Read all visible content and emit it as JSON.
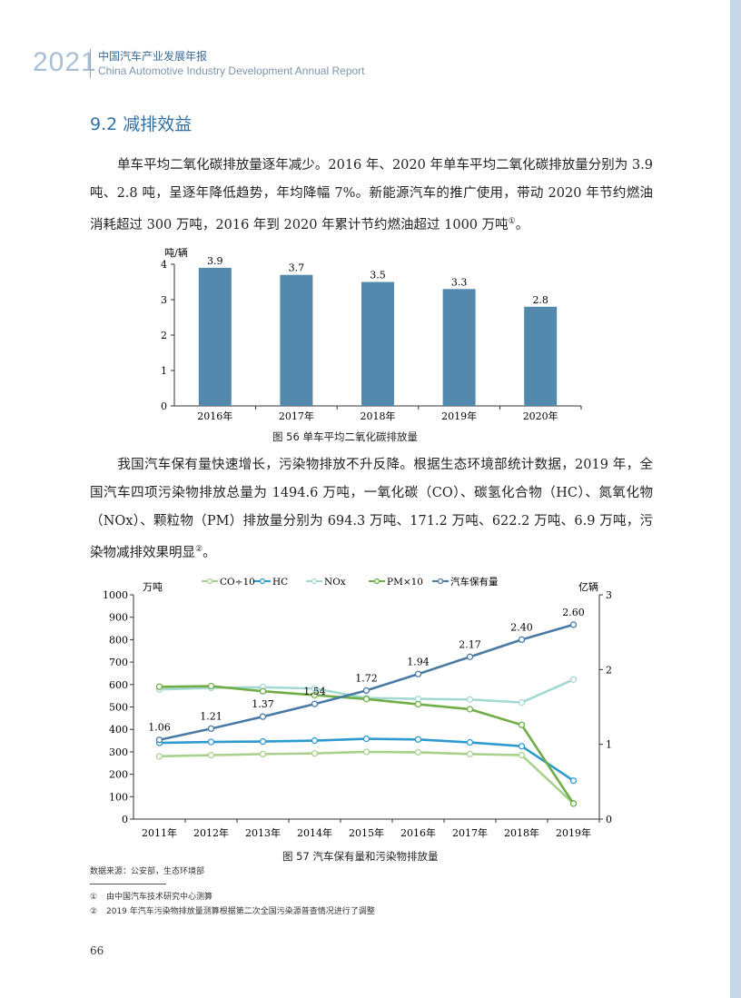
{
  "header": {
    "year": "2021",
    "title_cn": "中国汽车产业发展年报",
    "title_en": "China Automotive Industry Development Annual Report"
  },
  "section": {
    "title": "9.2 减排效益"
  },
  "paragraph1": {
    "text": "单车平均二氧化碳排放量逐年减少。2016 年、2020 年单车平均二氧化碳排放量分别为 3.9 吨、2.8 吨，呈逐年降低趋势，年均降幅 7%。新能源汽车的推广使用，带动 2020 年节约燃油消耗超过 300 万吨，2016 年到 2020 年累计节约燃油超过 1000 万吨",
    "footnote_mark": "①",
    "end": "。"
  },
  "figure1": {
    "caption": "图 56 单车平均二氧化碳排放量"
  },
  "paragraph2": {
    "text": "我国汽车保有量快速增长，污染物排放不升反降。根据生态环境部统计数据，2019 年，全国汽车四项污染物排放总量为 1494.6 万吨，一氧化碳（CO）、碳氢化合物（HC）、氮氧化物（NOx）、颗粒物（PM）排放量分别为 694.3 万吨、171.2 万吨、622.2 万吨、6.9 万吨，污染物减排效果明显",
    "footnote_mark": "②",
    "end": "。"
  },
  "figure2": {
    "caption": "图 57 汽车保有量和污染物排放量"
  },
  "source": "数据来源：公安部，生态环境部",
  "footnotes": [
    {
      "mark": "①",
      "text": "由中国汽车技术研究中心测算"
    },
    {
      "mark": "②",
      "text": "2019 年汽车污染物排放量测算根据第二次全国污染源普查情况进行了调整"
    }
  ],
  "page_number": "66",
  "colors": {
    "bar": "#5289ad",
    "co": "#a9d18e",
    "hc": "#2e9ad0",
    "nox": "#a3d9d3",
    "pm": "#70ad47",
    "vehicles": "#4a7aa6",
    "header": "#3b6a99"
  },
  "chart_data": [
    {
      "type": "bar",
      "title": "",
      "ylabel": "吨/辆",
      "xlabel": "",
      "categories": [
        "2016年",
        "2017年",
        "2018年",
        "2019年",
        "2020年"
      ],
      "values": [
        3.9,
        3.7,
        3.5,
        3.3,
        2.8
      ],
      "value_labels": [
        "3.9",
        "3.7",
        "3.5",
        "3.3",
        "2.8"
      ],
      "ylim": [
        0,
        4
      ],
      "yticks": [
        "0",
        "1",
        "2",
        "3",
        "4"
      ],
      "grid": false
    },
    {
      "type": "line",
      "title": "",
      "ylabel_left": "万吨",
      "ylabel_right": "亿辆",
      "x": [
        "2011年",
        "2012年",
        "2013年",
        "2014年",
        "2015年",
        "2016年",
        "2017年",
        "2018年",
        "2019年"
      ],
      "ylim_left": [
        0,
        1000
      ],
      "yticks_left": [
        "0",
        "100",
        "200",
        "300",
        "400",
        "500",
        "600",
        "700",
        "800",
        "900",
        "1000"
      ],
      "ylim_right": [
        0,
        3
      ],
      "yticks_right": [
        "0",
        "1",
        "2",
        "3"
      ],
      "legend_position": "top",
      "grid": false,
      "series": [
        {
          "name": "CO÷10",
          "axis": "left",
          "color": "#a9d18e",
          "values": [
            280,
            285,
            290,
            293,
            300,
            298,
            290,
            285,
            69.4
          ]
        },
        {
          "name": "HC",
          "axis": "left",
          "color": "#2e9ad0",
          "values": [
            340,
            344,
            346,
            350,
            358,
            355,
            342,
            325,
            171.2
          ]
        },
        {
          "name": "NOx",
          "axis": "left",
          "color": "#a3d9d3",
          "values": [
            578,
            585,
            588,
            582,
            540,
            536,
            533,
            520,
            622.2
          ]
        },
        {
          "name": "PM×10",
          "axis": "left",
          "color": "#70ad47",
          "values": [
            590,
            593,
            570,
            553,
            535,
            512,
            490,
            420,
            69
          ]
        },
        {
          "name": "汽车保有量",
          "axis": "right",
          "color": "#4a7aa6",
          "values": [
            1.06,
            1.21,
            1.37,
            1.54,
            1.72,
            1.94,
            2.17,
            2.4,
            2.6
          ],
          "value_labels": [
            "1.06",
            "1.21",
            "1.37",
            "1.54",
            "1.72",
            "1.94",
            "2.17",
            "2.40",
            "2.60"
          ]
        }
      ]
    }
  ]
}
